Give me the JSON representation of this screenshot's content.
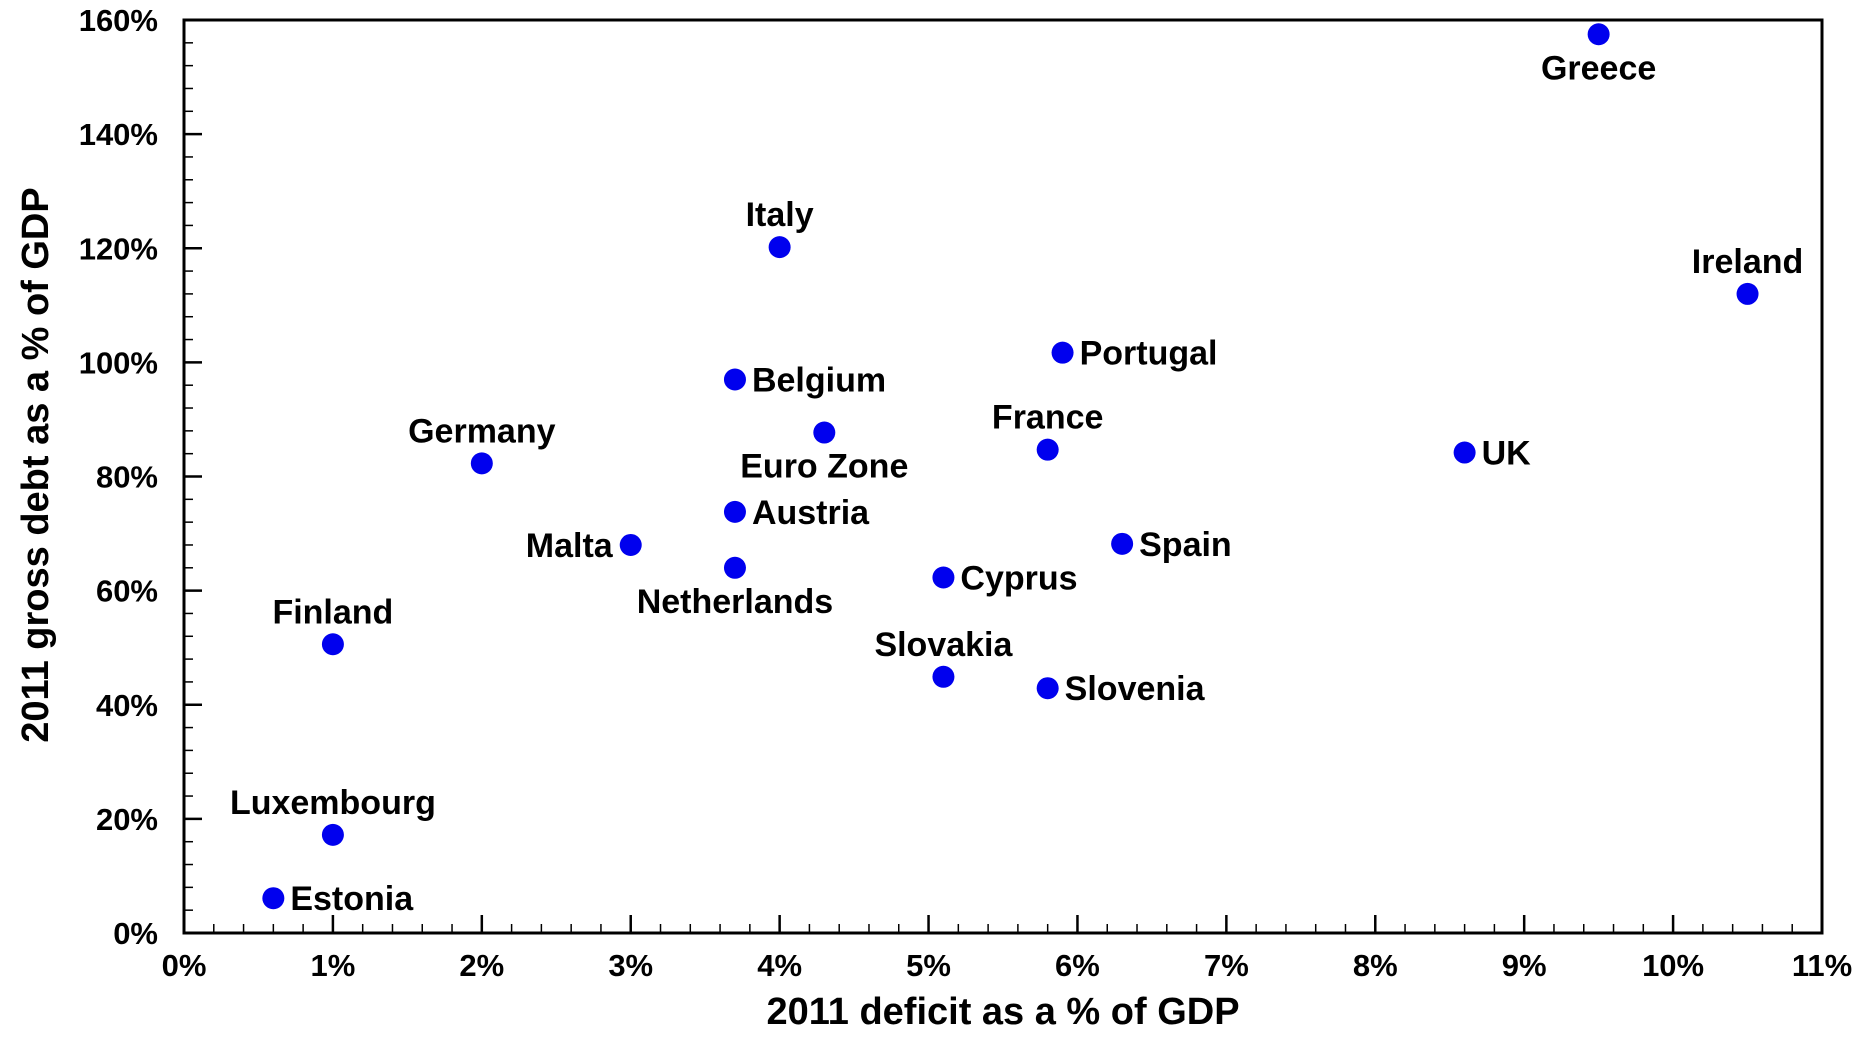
{
  "chart_data": {
    "type": "scatter",
    "title": "",
    "xlabel": "2011 deficit as a % of GDP",
    "ylabel": "2011 gross debt as a % of GDP",
    "xlim": [
      0,
      11
    ],
    "ylim": [
      0,
      160
    ],
    "x_ticks": [
      0,
      1,
      2,
      3,
      4,
      5,
      6,
      7,
      8,
      9,
      10,
      11
    ],
    "x_tick_labels": [
      "0%",
      "1%",
      "2%",
      "3%",
      "4%",
      "5%",
      "6%",
      "7%",
      "8%",
      "9%",
      "10%",
      "11%"
    ],
    "y_ticks": [
      0,
      20,
      40,
      60,
      80,
      100,
      120,
      140,
      160
    ],
    "y_tick_labels": [
      "0%",
      "20%",
      "40%",
      "60%",
      "80%",
      "100%",
      "120%",
      "140%",
      "160%"
    ],
    "grid": false,
    "legend": "none",
    "marker_color": "#0000ee",
    "points": [
      {
        "label": "Greece",
        "x": 9.5,
        "y": 157.5,
        "label_position": "below"
      },
      {
        "label": "Ireland",
        "x": 10.5,
        "y": 112,
        "label_position": "above"
      },
      {
        "label": "Italy",
        "x": 4.0,
        "y": 120.2,
        "label_position": "above"
      },
      {
        "label": "Portugal",
        "x": 5.9,
        "y": 101.7,
        "label_position": "right"
      },
      {
        "label": "Belgium",
        "x": 3.7,
        "y": 97,
        "label_position": "right"
      },
      {
        "label": "Euro Zone",
        "x": 4.3,
        "y": 87.7,
        "label_position": "below"
      },
      {
        "label": "France",
        "x": 5.8,
        "y": 84.7,
        "label_position": "above"
      },
      {
        "label": "UK",
        "x": 8.6,
        "y": 84.2,
        "label_position": "right"
      },
      {
        "label": "Germany",
        "x": 2.0,
        "y": 82.3,
        "label_position": "above"
      },
      {
        "label": "Austria",
        "x": 3.7,
        "y": 73.8,
        "label_position": "right"
      },
      {
        "label": "Malta",
        "x": 3.0,
        "y": 68,
        "label_position": "left"
      },
      {
        "label": "Spain",
        "x": 6.3,
        "y": 68.2,
        "label_position": "right"
      },
      {
        "label": "Netherlands",
        "x": 3.7,
        "y": 64,
        "label_position": "below"
      },
      {
        "label": "Cyprus",
        "x": 5.1,
        "y": 62.3,
        "label_position": "right"
      },
      {
        "label": "Finland",
        "x": 1.0,
        "y": 50.6,
        "label_position": "above"
      },
      {
        "label": "Slovakia",
        "x": 5.1,
        "y": 44.9,
        "label_position": "above"
      },
      {
        "label": "Slovenia",
        "x": 5.8,
        "y": 42.9,
        "label_position": "right"
      },
      {
        "label": "Luxembourg",
        "x": 1.0,
        "y": 17.2,
        "label_position": "above"
      },
      {
        "label": "Estonia",
        "x": 0.6,
        "y": 6.1,
        "label_position": "right"
      }
    ]
  }
}
